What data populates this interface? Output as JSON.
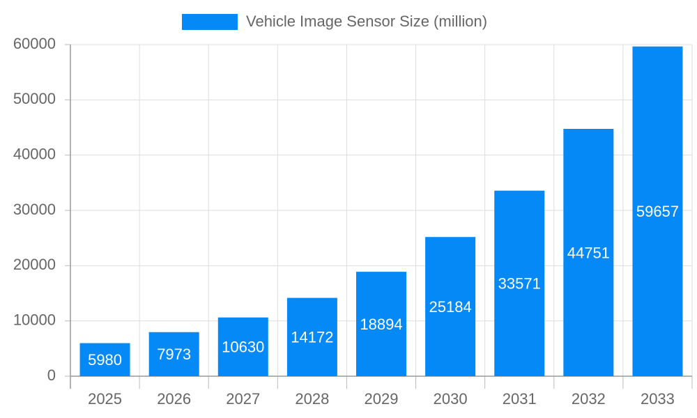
{
  "chart_data": {
    "type": "bar",
    "categories": [
      "2025",
      "2026",
      "2027",
      "2028",
      "2029",
      "2030",
      "2031",
      "2032",
      "2033"
    ],
    "series": [
      {
        "name": "Vehicle Image Sensor Size (million)",
        "color": "#0589f7",
        "values": [
          5980,
          7973,
          10630,
          14172,
          18894,
          25184,
          33571,
          44751,
          59657
        ]
      }
    ],
    "ylim": [
      0,
      60000
    ],
    "yticks": [
      0,
      10000,
      20000,
      30000,
      40000,
      50000,
      60000
    ],
    "grid": true,
    "legend": "top"
  }
}
